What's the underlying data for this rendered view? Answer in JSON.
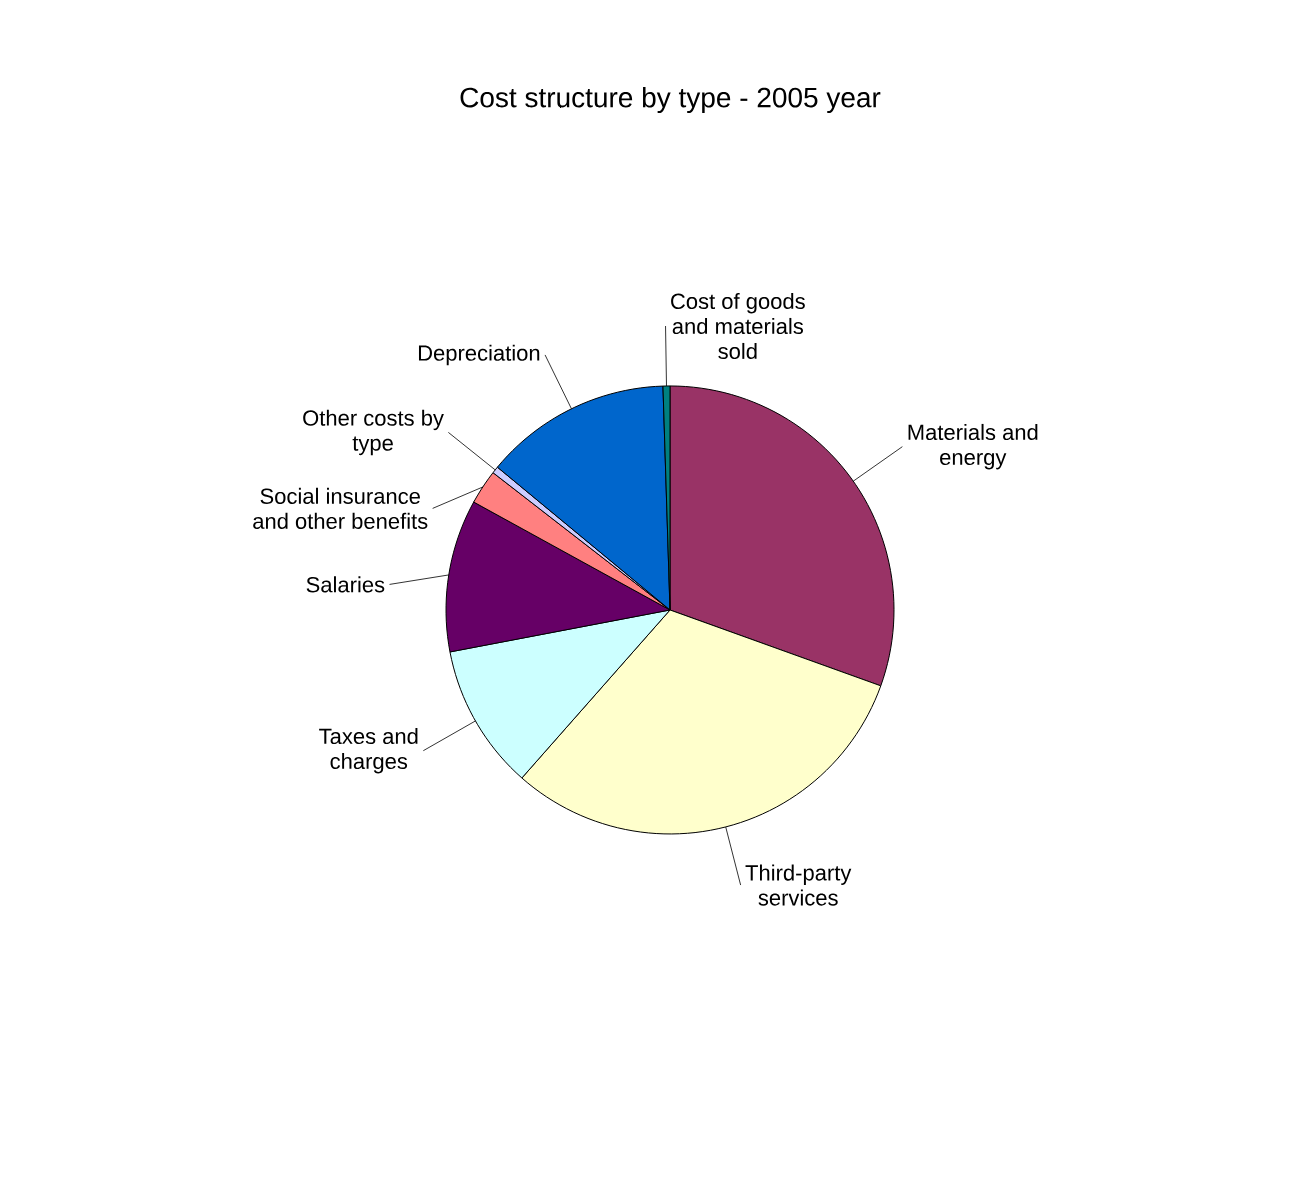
{
  "chart_data": {
    "type": "pie",
    "title": "Cost structure by type - 2005 year",
    "categories": [
      "Materials and energy",
      "Third-party services",
      "Taxes and charges",
      "Salaries",
      "Social insurance and other benefits",
      "Other costs by type",
      "Depreciation",
      "Cost of goods and materials sold"
    ],
    "values": [
      30.5,
      31,
      10.5,
      11,
      2.5,
      0.5,
      13.5,
      0.5
    ],
    "colors": [
      "#993366",
      "#ffffcc",
      "#ccffff",
      "#660066",
      "#ff8080",
      "#ccccff",
      "#0066cc",
      "#008080"
    ]
  }
}
